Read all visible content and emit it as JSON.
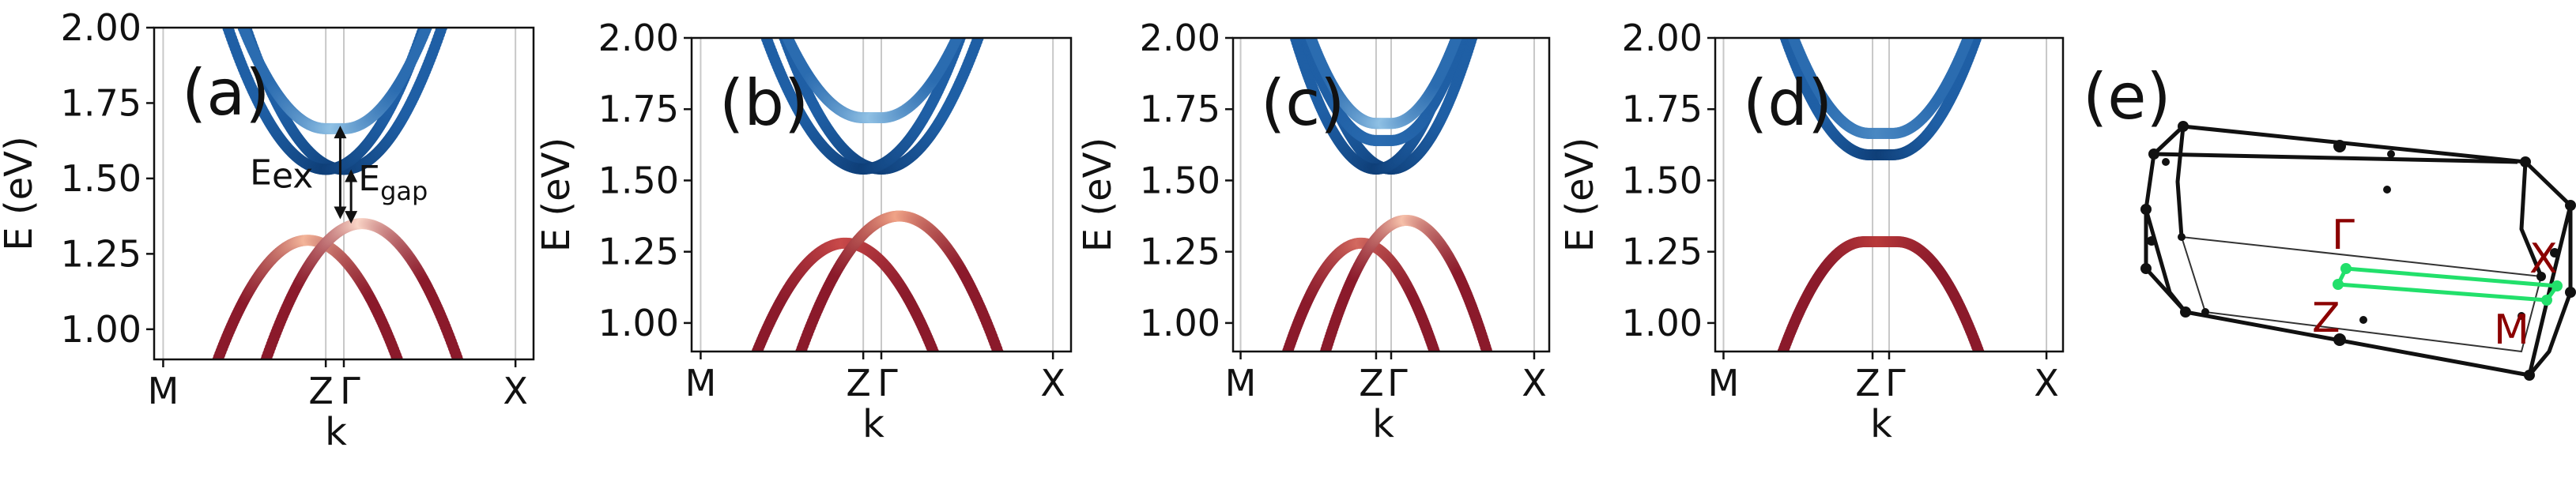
{
  "chart_data": [
    {
      "type": "scatter",
      "panel_label": "(a)",
      "xlabel": "k",
      "ylabel": "E (eV)",
      "ylim": [
        0.9,
        2.0
      ],
      "yticks": [
        "1.00",
        "1.25",
        "1.50",
        "1.75",
        "2.00"
      ],
      "xticks": [
        "M",
        "Z",
        "Γ",
        "X"
      ],
      "xtick_pos": [
        -1.0,
        -0.1,
        0.0,
        0.95
      ],
      "xlim": [
        -1.05,
        1.05
      ],
      "grid": "vertical lines at k-points",
      "conduction": [
        {
          "x_c": 0.0,
          "e0": 1.53,
          "a": 1.6,
          "shape": "parabola",
          "color_min": "#0f3f78",
          "color_max": "#1f5fa5"
        },
        {
          "x_c": -0.1,
          "e0": 1.53,
          "a": 1.6,
          "shape": "parabola",
          "color_min": "#0f3f78",
          "color_max": "#1f5fa5"
        },
        {
          "x_c": -0.05,
          "e0": 1.665,
          "a": 1.6,
          "shape": "flat",
          "flat_half_width": 0.05,
          "color_min": "#8fc0e4",
          "color_max": "#2b6cb0"
        }
      ],
      "valence": [
        {
          "x_c": -0.2,
          "e0": 1.295,
          "a": 1.6,
          "color_min": "#f3b59a",
          "color_max": "#8b1a2b"
        },
        {
          "x_c": 0.1,
          "e0": 1.35,
          "a": 1.6,
          "color_min": "#f9d4c6",
          "color_max": "#8b1a2b"
        }
      ],
      "annotations": [
        {
          "text": "E",
          "sub": "ex",
          "note": "arrow between 1.365 and 1.675"
        },
        {
          "text": "E",
          "sub": "gap",
          "note": "arrow between 1.35 and 1.53"
        }
      ]
    },
    {
      "type": "scatter",
      "panel_label": "(b)",
      "xlabel": "k",
      "ylabel": "E (eV)",
      "ylim": [
        0.9,
        2.0
      ],
      "yticks": [
        "1.00",
        "1.25",
        "1.50",
        "1.75",
        "2.00"
      ],
      "xticks": [
        "M",
        "Z",
        "Γ",
        "X"
      ],
      "xtick_pos": [
        -1.0,
        -0.1,
        0.0,
        0.95
      ],
      "xlim": [
        -1.05,
        1.05
      ],
      "grid": "vertical lines at k-points",
      "conduction": [
        {
          "x_c": 0.0,
          "e0": 1.54,
          "a": 1.6,
          "shape": "parabola",
          "color_min": "#0f3f78",
          "color_max": "#1f5fa5"
        },
        {
          "x_c": -0.1,
          "e0": 1.54,
          "a": 1.6,
          "shape": "parabola",
          "color_min": "#0f3f78",
          "color_max": "#1f5fa5"
        },
        {
          "x_c": -0.05,
          "e0": 1.72,
          "a": 1.6,
          "shape": "flat",
          "flat_half_width": 0.05,
          "color_min": "#8fc0e4",
          "color_max": "#2b6cb0"
        }
      ],
      "valence": [
        {
          "x_c": -0.2,
          "e0": 1.28,
          "a": 1.6,
          "color_min": "#c94a4a",
          "color_max": "#8b1a2b"
        },
        {
          "x_c": 0.1,
          "e0": 1.375,
          "a": 1.6,
          "color_min": "#f0a387",
          "color_max": "#8b1a2b"
        }
      ]
    },
    {
      "type": "scatter",
      "panel_label": "(c)",
      "xlabel": "k",
      "ylabel": "E (eV)",
      "ylim": [
        0.9,
        2.0
      ],
      "yticks": [
        "1.00",
        "1.25",
        "1.50",
        "1.75",
        "2.00"
      ],
      "xticks": [
        "M",
        "Z",
        "Γ",
        "X"
      ],
      "xtick_pos": [
        -1.0,
        -0.1,
        0.0,
        0.95
      ],
      "xlim": [
        -1.05,
        1.05
      ],
      "grid": "vertical lines at k-points",
      "conduction": [
        {
          "x_c": 0.0,
          "e0": 1.54,
          "a": 1.6,
          "shape": "parabola",
          "color_min": "#0f3f78",
          "color_max": "#1f5fa5"
        },
        {
          "x_c": -0.1,
          "e0": 1.54,
          "a": 1.6,
          "shape": "parabola",
          "color_min": "#0f3f78",
          "color_max": "#1f5fa5"
        },
        {
          "x_c": -0.05,
          "e0": 1.64,
          "a": 1.6,
          "shape": "flat",
          "flat_half_width": 0.05,
          "color_min": "#2b6cb0",
          "color_max": "#1f5fa5"
        },
        {
          "x_c": -0.05,
          "e0": 1.7,
          "a": 1.6,
          "shape": "flat",
          "flat_half_width": 0.05,
          "color_min": "#8fc0e4",
          "color_max": "#2b6cb0"
        }
      ],
      "valence": [
        {
          "x_c": -0.2,
          "e0": 1.28,
          "a": 1.6,
          "color_min": "#d36a60",
          "color_max": "#8b1a2b"
        },
        {
          "x_c": 0.1,
          "e0": 1.36,
          "a": 1.6,
          "color_min": "#f6c0aa",
          "color_max": "#8b1a2b"
        }
      ]
    },
    {
      "type": "scatter",
      "panel_label": "(d)",
      "xlabel": "k",
      "ylabel": "E (eV)",
      "ylim": [
        0.9,
        2.0
      ],
      "yticks": [
        "1.00",
        "1.25",
        "1.50",
        "1.75",
        "2.00"
      ],
      "xticks": [
        "M",
        "Z",
        "Γ",
        "X"
      ],
      "xtick_pos": [
        -1.0,
        -0.1,
        0.0,
        0.95
      ],
      "xlim": [
        -1.05,
        1.05
      ],
      "grid": "vertical lines at k-points",
      "conduction": [
        {
          "x_c": -0.05,
          "e0": 1.59,
          "a": 1.6,
          "shape": "flat",
          "flat_half_width": 0.07,
          "color_min": "#0f3f78",
          "color_max": "#1f5fa5"
        },
        {
          "x_c": -0.05,
          "e0": 1.665,
          "a": 1.6,
          "shape": "flat",
          "flat_half_width": 0.07,
          "color_min": "#4a88c2",
          "color_max": "#2b6cb0"
        }
      ],
      "valence": [
        {
          "x_c": -0.05,
          "e0": 1.285,
          "a": 1.6,
          "shape": "flat",
          "flat_half_width": 0.1,
          "color_min": "#b83a3a",
          "color_max": "#8b1a2b"
        }
      ]
    }
  ],
  "brillouin_zone": {
    "panel_label": "(e)",
    "points": [
      "Γ",
      "X",
      "Z",
      "M"
    ],
    "path_color": "#22e06b",
    "label_color": "#8b0000"
  }
}
